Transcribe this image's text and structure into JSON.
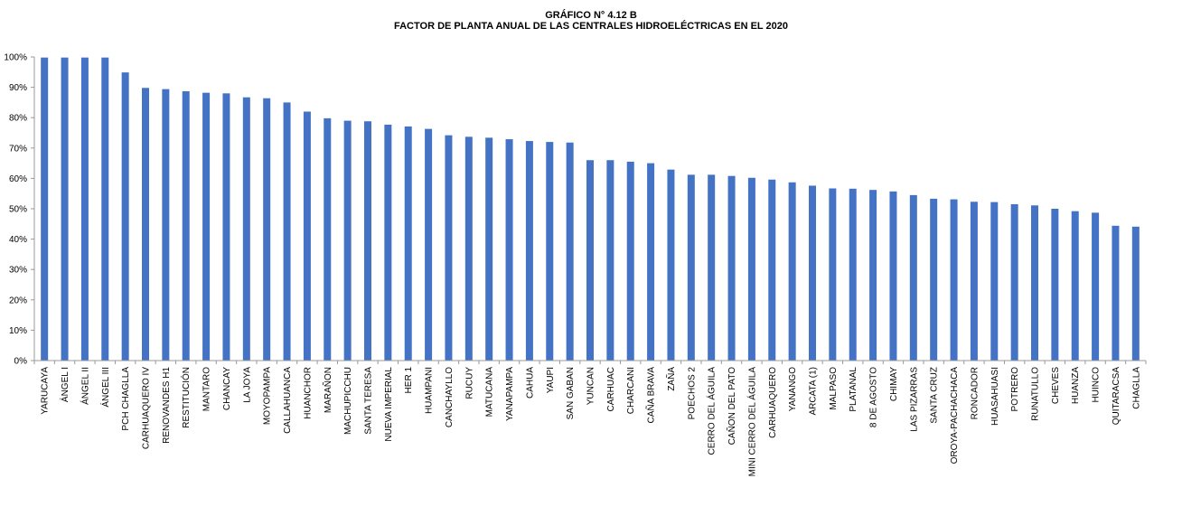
{
  "chart_data": {
    "type": "bar",
    "title": "GRÁFICO N° 4.12 B",
    "subtitle": "FACTOR DE PLANTA ANUAL DE LAS CENTRALES HIDROELÉCTRICAS  EN EL 2020",
    "xlabel": "",
    "ylabel": "",
    "ylim": [
      0,
      100
    ],
    "y_ticks": [
      0,
      10,
      20,
      30,
      40,
      50,
      60,
      70,
      80,
      90,
      100
    ],
    "y_tick_labels": [
      "0%",
      "10%",
      "20%",
      "30%",
      "40%",
      "50%",
      "60%",
      "70%",
      "80%",
      "90%",
      "100%"
    ],
    "bar_color": "#4472C4",
    "axis_color": "#999999",
    "grid": false,
    "legend": "none",
    "categories": [
      "YARUCAYA",
      "ÁNGEL I",
      "ÁNGEL II",
      "ÁNGEL III",
      "PCH CHAGLLA",
      "CARHUAQUERO IV",
      "RENOVANDES H1",
      "RESTITUCIÓN",
      "MANTARO",
      "CHANCAY",
      "LA JOYA",
      "MOYOPAMPA",
      "CALLAHUANCA",
      "HUANCHOR",
      "MARAÑON",
      "MACHUPICCHU",
      "SANTA TERESA",
      "NUEVA IMPERIAL",
      "HER 1",
      "HUAMPANI",
      "CANCHAYLLO",
      "RUCUY",
      "MATUCANA",
      "YANAPAMPA",
      "CAHUA",
      "YAUPI",
      "SAN GABAN",
      "YUNCAN",
      "CARHUAC",
      "CHARCANI",
      "CAÑA BRAVA",
      "ZAÑA",
      "POECHOS 2",
      "CERRO DEL ÁGUILA",
      "CAÑON DEL PATO",
      "MINI CERRO DEL ÁGUILA",
      "CARHUAQUERO",
      "YANANGO",
      "ARCATA (1)",
      "MALPASO",
      "PLATANAL",
      "8 DE AGOSTO",
      "CHIMAY",
      "LAS PIZARRAS",
      "SANTA CRUZ",
      "OROYA-PACHACHACA",
      "RONCADOR",
      "HUASAHUASI",
      "POTRERO",
      "RUNATULLO",
      "CHEVES",
      "HUANZA",
      "HUINCO",
      "QUITARACSA",
      "CHAGLLA"
    ],
    "values": [
      99.8,
      99.8,
      99.8,
      99.8,
      94.9,
      89.8,
      89.4,
      88.7,
      88.2,
      88.0,
      86.7,
      86.4,
      85.0,
      82.0,
      79.8,
      79.0,
      78.8,
      77.7,
      77.1,
      76.3,
      74.2,
      73.7,
      73.4,
      72.9,
      72.3,
      72.0,
      71.8,
      66.0,
      66.0,
      65.5,
      65.0,
      62.9,
      61.2,
      61.2,
      60.8,
      60.2,
      59.6,
      58.7,
      57.6,
      56.7,
      56.6,
      56.2,
      55.7,
      54.5,
      53.3,
      53.1,
      52.3,
      52.2,
      51.5,
      51.1,
      50.0,
      49.2,
      48.7,
      44.4,
      44.1
    ]
  }
}
